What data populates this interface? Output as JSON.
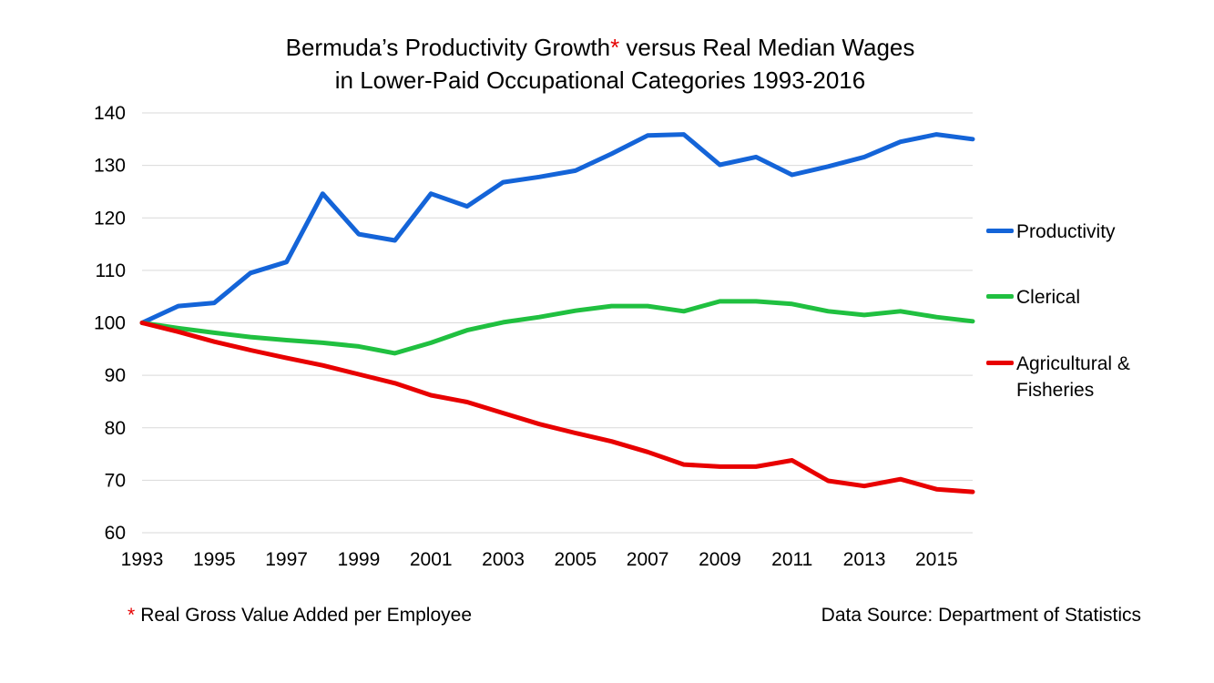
{
  "title": {
    "line1_prefix": "Bermuda’s Productivity Growth",
    "line1_star": "*",
    "line1_suffix": " versus Real Median Wages",
    "line2": "in Lower-Paid Occupational Categories 1993-2016"
  },
  "footnote": {
    "star": "*",
    "text": "Real Gross Value Added per Employee"
  },
  "source": "Data Source: Department of Statistics",
  "chart_data": {
    "type": "line",
    "title": "Bermuda’s Productivity Growth* versus Real Median Wages in Lower-Paid Occupational Categories 1993-2016",
    "x": [
      1993,
      1994,
      1995,
      1996,
      1997,
      1998,
      1999,
      2000,
      2001,
      2002,
      2003,
      2004,
      2005,
      2006,
      2007,
      2008,
      2009,
      2010,
      2011,
      2012,
      2013,
      2014,
      2015,
      2016
    ],
    "xticks": [
      "1993",
      "1995",
      "1997",
      "1999",
      "2001",
      "2003",
      "2005",
      "2007",
      "2009",
      "2011",
      "2013",
      "2015"
    ],
    "yticks": [
      "60",
      "70",
      "80",
      "90",
      "100",
      "110",
      "120",
      "130",
      "140"
    ],
    "ylim": [
      60,
      140
    ],
    "xlim": [
      1993,
      2016
    ],
    "grid": "horizontal",
    "legend_position": "right",
    "series": [
      {
        "name": "Productivity",
        "color": "#1464d8",
        "values": [
          100,
          103.2,
          103.8,
          109.5,
          111.6,
          124.6,
          116.9,
          115.7,
          124.6,
          122.2,
          126.8,
          127.8,
          129,
          132.2,
          135.7,
          135.9,
          130.1,
          131.6,
          128.2,
          129.8,
          131.6,
          134.5,
          135.9,
          135
        ]
      },
      {
        "name": "Clerical",
        "color": "#20c040",
        "values": [
          100,
          99,
          98.1,
          97.3,
          96.7,
          96.2,
          95.5,
          94.2,
          96.2,
          98.6,
          100.1,
          101.1,
          102.3,
          103.2,
          103.2,
          102.2,
          104.1,
          104.1,
          103.6,
          102.2,
          101.5,
          102.2,
          101.1,
          100.3
        ]
      },
      {
        "name": "Agricultural &\nFisheries",
        "color": "#e80000",
        "values": [
          100,
          98.3,
          96.4,
          94.8,
          93.3,
          91.9,
          90.2,
          88.5,
          86.2,
          84.9,
          82.8,
          80.7,
          79,
          77.4,
          75.4,
          73,
          72.6,
          72.6,
          73.8,
          69.9,
          68.9,
          70.2,
          68.3,
          67.8
        ]
      }
    ]
  }
}
